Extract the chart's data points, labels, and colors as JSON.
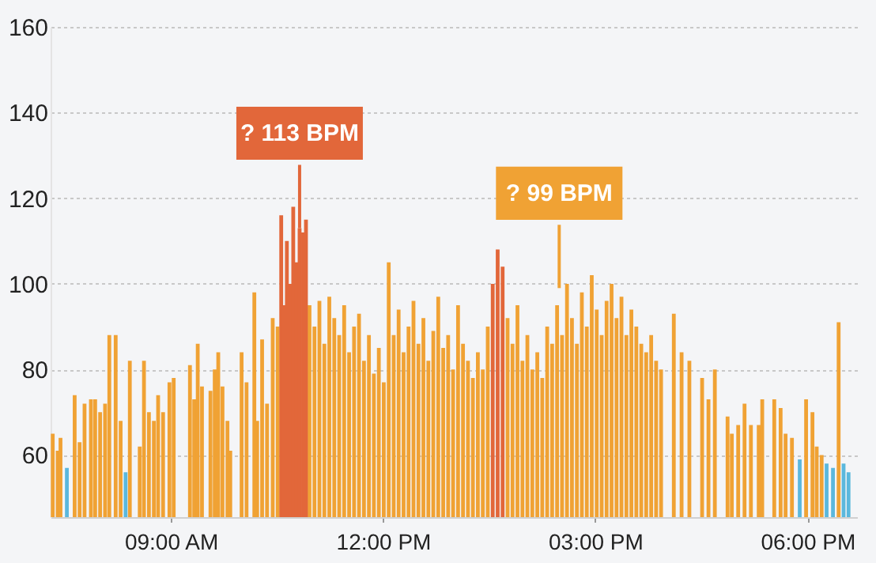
{
  "chart_data": {
    "type": "bar",
    "xlim": [
      7.3,
      18.7
    ],
    "ylim": [
      45.5,
      160
    ],
    "yticks": [
      60,
      80,
      100,
      120,
      140,
      160
    ],
    "xticks": [
      {
        "value": 9,
        "label": "09:00 AM"
      },
      {
        "value": 12,
        "label": "12:00 PM"
      },
      {
        "value": 15,
        "label": "03:00 PM"
      },
      {
        "value": 18,
        "label": "06:00 PM"
      }
    ],
    "grid": "y",
    "legend": false,
    "series": [
      {
        "color": "#f0a234",
        "x": [
          7.33,
          7.4,
          7.44,
          7.64,
          7.71,
          7.78,
          7.87,
          7.93,
          8.0,
          8.07,
          8.13,
          8.22,
          8.29,
          8.42,
          8.56,
          8.62,
          8.69,
          8.76,
          8.82,
          8.89,
          8.98,
          9.04,
          9.27,
          9.33,
          9.38,
          9.44,
          9.56,
          9.62,
          9.67,
          9.73,
          9.8,
          9.84,
          10.0,
          10.07,
          10.18,
          10.22,
          10.29,
          10.36,
          10.44,
          10.51,
          10.96,
          11.03,
          11.1,
          11.17,
          11.24,
          11.31,
          11.38,
          11.45,
          11.52,
          11.59,
          11.66,
          11.73,
          11.8,
          11.87,
          11.94,
          12.01,
          12.08,
          12.15,
          12.22,
          12.29,
          12.36,
          12.43,
          12.5,
          12.57,
          12.64,
          12.71,
          12.78,
          12.85,
          12.92,
          12.99,
          13.06,
          13.13,
          13.2,
          13.27,
          13.34,
          13.41,
          13.48,
          13.76,
          13.83,
          13.9,
          13.97,
          14.04,
          14.11,
          14.18,
          14.25,
          14.32,
          14.39,
          14.46,
          14.53,
          14.6,
          14.67,
          14.74,
          14.81,
          14.88,
          14.95,
          15.02,
          15.09,
          15.16,
          15.23,
          15.3,
          15.37,
          15.44,
          15.51,
          15.58,
          15.65,
          15.72,
          15.79,
          15.86,
          15.93,
          16.11,
          16.22,
          16.33,
          16.51,
          16.6,
          16.69,
          16.87,
          16.93,
          17.02,
          17.11,
          17.2,
          17.31,
          17.36,
          17.53,
          17.62,
          17.69,
          17.78,
          17.98,
          18.07,
          18.13,
          18.2,
          18.44
        ],
        "values": [
          65,
          61,
          64,
          74,
          63,
          72,
          73,
          73,
          70,
          72,
          88,
          88,
          68,
          82,
          62,
          82,
          70,
          68,
          74,
          70,
          77,
          78,
          81,
          73,
          86,
          76,
          75,
          80,
          84,
          76,
          68,
          61,
          84,
          77,
          98,
          68,
          87,
          72,
          92,
          90,
          95,
          90,
          96,
          86,
          97,
          92,
          88,
          95,
          84,
          90,
          93,
          82,
          88,
          79,
          85,
          77,
          105,
          88,
          94,
          84,
          90,
          96,
          86,
          92,
          82,
          89,
          97,
          85,
          88,
          80,
          95,
          86,
          82,
          78,
          84,
          80,
          90,
          92,
          86,
          95,
          82,
          88,
          80,
          84,
          78,
          90,
          86,
          95,
          88,
          100,
          92,
          86,
          98,
          90,
          102,
          94,
          88,
          96,
          100,
          92,
          97,
          88,
          94,
          90,
          86,
          84,
          88,
          82,
          80,
          93,
          84,
          82,
          78,
          73,
          80,
          69,
          65,
          67,
          72,
          67,
          67,
          73,
          73,
          71,
          65,
          64,
          73,
          70,
          62,
          60,
          91
        ]
      },
      {
        "color": "#e2673a",
        "x": [
          10.56,
          10.6,
          10.64,
          10.69,
          10.73,
          10.78,
          10.82,
          10.87,
          10.91,
          13.55,
          13.62,
          13.69
        ],
        "values": [
          116,
          95,
          110,
          100,
          118,
          105,
          113,
          112,
          115,
          100,
          108,
          104
        ]
      },
      {
        "color": "#5bb8dd",
        "x": [
          7.53,
          8.36,
          17.89,
          18.27,
          18.36,
          18.51,
          18.58
        ],
        "values": [
          57,
          56,
          59,
          58,
          57,
          58,
          56
        ]
      }
    ],
    "annotations": [
      {
        "text": "? 113 BPM",
        "x": 10.82,
        "y": 113
      },
      {
        "text": "? 99 BPM",
        "x": 14.49,
        "y": 99
      }
    ]
  }
}
